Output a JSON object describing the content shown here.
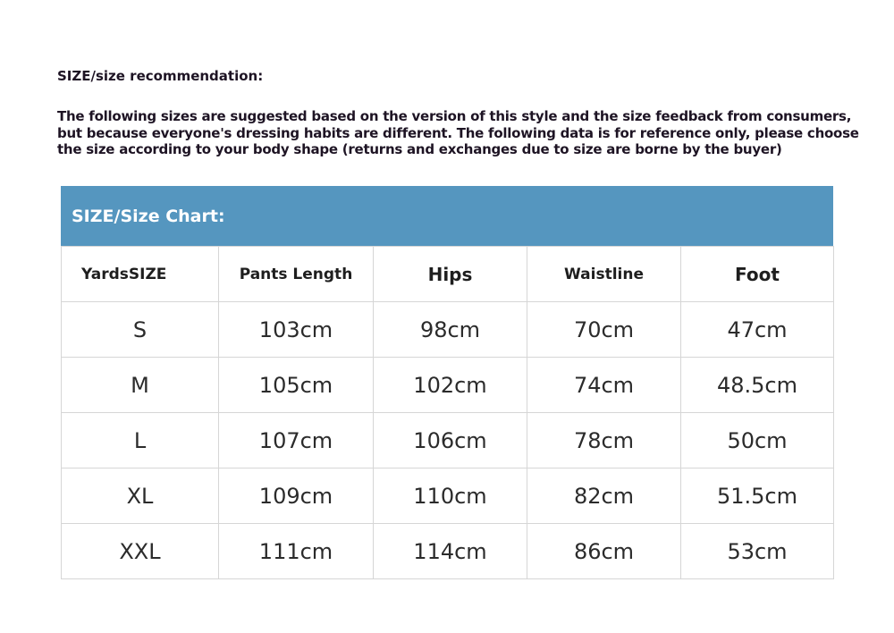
{
  "title": "SIZE/size recommendation:",
  "description": "The following sizes are suggested based on the version of this style and the size feedback from consumers, but because everyone's dressing habits are different. The following data is for reference only, please choose the size according to your body shape (returns and exchanges due to size are borne by the buyer)",
  "chart": {
    "heading": "SIZE/Size Chart:",
    "header_color": "#5596bf",
    "columns": [
      "YardsSIZE",
      "Pants Length",
      "Hips",
      "Waistline",
      "Foot"
    ],
    "rows": [
      [
        "S",
        "103cm",
        "98cm",
        "70cm",
        "47cm"
      ],
      [
        "M",
        "105cm",
        "102cm",
        "74cm",
        "48.5cm"
      ],
      [
        "L",
        "107cm",
        "106cm",
        "78cm",
        "50cm"
      ],
      [
        "XL",
        "109cm",
        "110cm",
        "82cm",
        "51.5cm"
      ],
      [
        "XXL",
        "111cm",
        "114cm",
        "86cm",
        "53cm"
      ]
    ]
  }
}
